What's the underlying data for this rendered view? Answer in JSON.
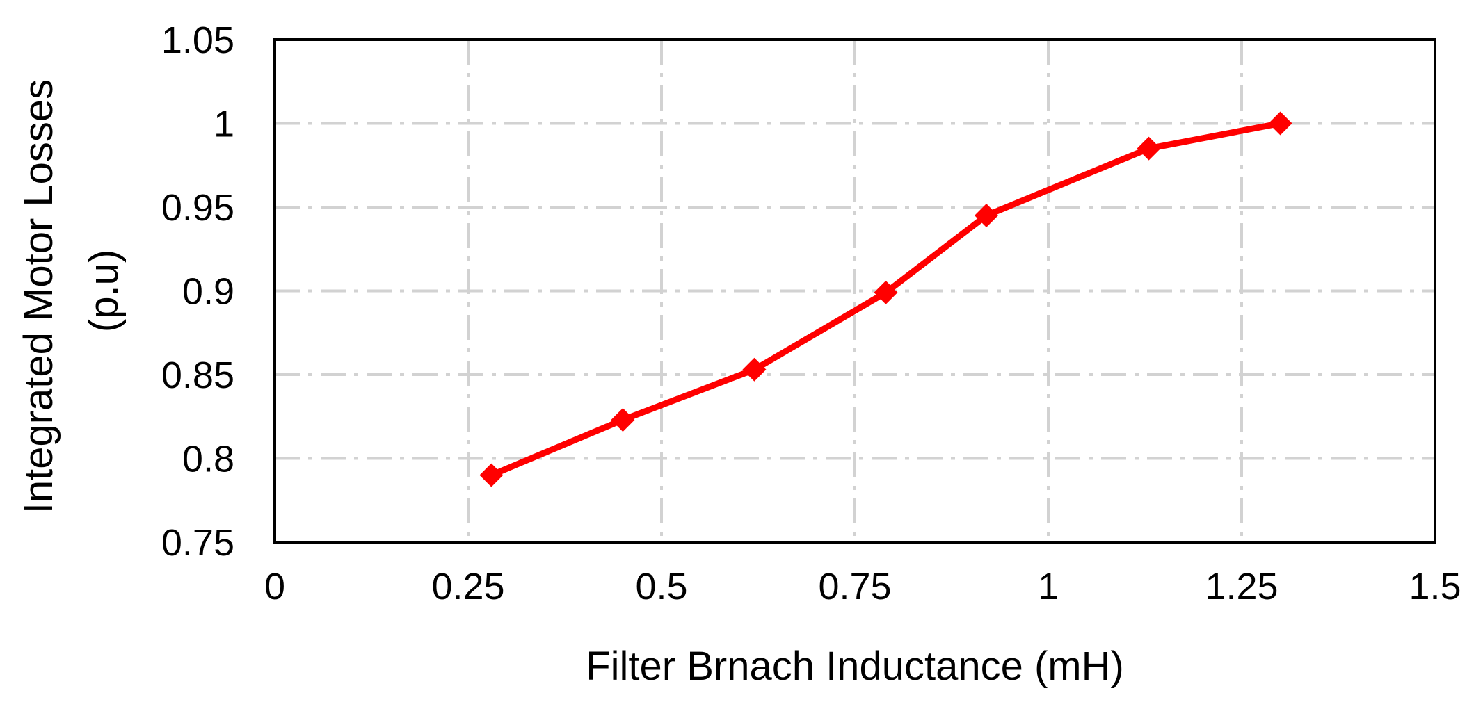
{
  "chart_data": {
    "type": "line",
    "title": "",
    "xlabel": "Filter Brnach Inductance (mH)",
    "ylabel_lines": [
      "Integrated Motor Losses",
      "(p.u)"
    ],
    "xlim": [
      0,
      1.5
    ],
    "ylim": [
      0.75,
      1.05
    ],
    "xticks": [
      {
        "value": 0,
        "label": "0"
      },
      {
        "value": 0.25,
        "label": "0.25"
      },
      {
        "value": 0.5,
        "label": "0.5"
      },
      {
        "value": 0.75,
        "label": "0.75"
      },
      {
        "value": 1,
        "label": "1"
      },
      {
        "value": 1.25,
        "label": "1.25"
      },
      {
        "value": 1.5,
        "label": "1.5"
      }
    ],
    "yticks": [
      {
        "value": 0.75,
        "label": "0.75"
      },
      {
        "value": 0.8,
        "label": "0.8"
      },
      {
        "value": 0.85,
        "label": "0.85"
      },
      {
        "value": 0.9,
        "label": "0.9"
      },
      {
        "value": 0.95,
        "label": "0.95"
      },
      {
        "value": 1,
        "label": "1"
      },
      {
        "value": 1.05,
        "label": "1.05"
      }
    ],
    "grid": true,
    "legend": "none",
    "series": [
      {
        "color": "#ff0000",
        "marker": "diamond",
        "x": [
          0.28,
          0.45,
          0.62,
          0.79,
          0.92,
          1.13,
          1.3
        ],
        "y": [
          0.79,
          0.823,
          0.853,
          0.899,
          0.945,
          0.985,
          1.0
        ]
      }
    ]
  }
}
